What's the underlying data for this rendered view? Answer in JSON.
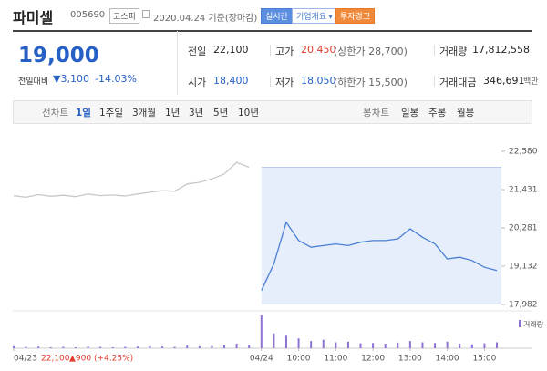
{
  "header": {
    "name": "파미셀",
    "code": "005690",
    "market": "코스피",
    "date": "2020.04.24 기준(장마감)",
    "buttons": [
      "실시간",
      "기업개요",
      "투자경고"
    ]
  },
  "price": {
    "current": "19,000",
    "change_label": "전일대비",
    "change": "▼3,100",
    "rate": "-14.03%"
  },
  "quote": [
    {
      "label": "전일",
      "value": "22,100"
    },
    {
      "label": "고가",
      "value": "20,450",
      "note": "(상한가 28,700)"
    },
    {
      "label": "거래량",
      "value": "17,812,558"
    },
    {
      "label": "시가",
      "value": "18,400"
    },
    {
      "label": "저가",
      "value": "18,050",
      "note": "(하한가 15,500)"
    },
    {
      "label": "거래대금",
      "value": "346,691",
      "note": "백만"
    }
  ],
  "tabs": {
    "line_label": "선차트",
    "line_items": [
      "1일",
      "1주일",
      "3개월",
      "1년",
      "3년",
      "5년",
      "10년"
    ],
    "candle_label": "봉차트",
    "candle_items": [
      "일봉",
      "주봉",
      "월봉"
    ]
  },
  "chart_data": {
    "type": "line",
    "categories": [
      "04/23",
      null,
      null,
      null,
      null,
      null,
      null,
      null,
      null,
      null,
      null,
      null,
      null,
      null,
      null,
      null,
      null,
      null,
      null,
      null,
      "04/24",
      null,
      null,
      "10:00",
      null,
      null,
      "11:00",
      null,
      null,
      "12:00",
      null,
      null,
      "13:00",
      null,
      null,
      "14:00",
      null,
      null,
      "15:00",
      null
    ],
    "ylim": [
      17982,
      22580
    ],
    "yticks": [
      {
        "value": 22580,
        "label": "22,580"
      },
      {
        "value": 21431,
        "label": "21,431"
      },
      {
        "value": 20281,
        "label": "20,281"
      },
      {
        "value": 19132,
        "label": "19,132"
      },
      {
        "value": 17982,
        "label": "17,982"
      }
    ],
    "base_value": 22100,
    "series": [
      {
        "color": "#c8c8c8",
        "values": [
          21250,
          21200,
          21280,
          21230,
          21260,
          21220,
          21300,
          21250,
          21270,
          21240,
          21300,
          21350,
          21400,
          21380,
          21600,
          21650,
          21750,
          21900,
          22250,
          22100,
          null,
          null,
          null,
          null,
          null,
          null,
          null,
          null,
          null,
          null,
          null,
          null,
          null,
          null,
          null,
          null,
          null,
          null,
          null,
          null
        ]
      },
      {
        "color": "#4a7fd4",
        "values": [
          null,
          null,
          null,
          null,
          null,
          null,
          null,
          null,
          null,
          null,
          null,
          null,
          null,
          null,
          null,
          null,
          null,
          null,
          null,
          null,
          18400,
          19200,
          20450,
          19900,
          19700,
          19750,
          19800,
          19750,
          19850,
          19900,
          19900,
          19950,
          20250,
          20000,
          19800,
          19350,
          19400,
          19300,
          19100,
          19000
        ]
      }
    ],
    "volume": {
      "name": "거래량",
      "color": "#8e72d8",
      "ylim": [
        0,
        100
      ],
      "values": [
        6,
        4,
        5,
        3,
        4,
        3,
        5,
        4,
        3,
        4,
        5,
        6,
        5,
        4,
        8,
        6,
        7,
        9,
        14,
        10,
        100,
        45,
        38,
        30,
        22,
        26,
        18,
        20,
        15,
        16,
        14,
        17,
        22,
        18,
        16,
        20,
        14,
        12,
        15,
        18
      ]
    },
    "footer": {
      "close": "22,100",
      "change": "▲900",
      "rate": "(+4.25%)"
    }
  }
}
